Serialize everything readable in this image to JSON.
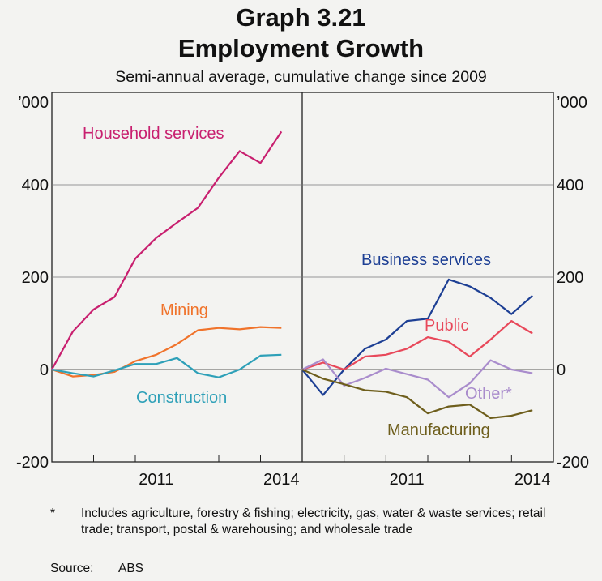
{
  "title": "Graph 3.21",
  "subtitle": "Employment Growth",
  "caption": "Semi-annual average, cumulative change since 2009",
  "footnote": {
    "marker": "*",
    "text": "Includes agriculture, forestry & fishing; electricity, gas, water & waste services; retail trade; transport, postal & warehousing; and wholesale trade"
  },
  "source": {
    "label": "Source:",
    "value": "ABS"
  },
  "chart_data": [
    {
      "type": "line",
      "panel": "left",
      "units_label": "’000",
      "ylim": [
        -200,
        600
      ],
      "yticks": [
        -200,
        0,
        200,
        400
      ],
      "xlim": [
        2009.0,
        2015.0
      ],
      "xticks": [
        2011,
        2014
      ],
      "x": [
        2009.0,
        2009.5,
        2010.0,
        2010.5,
        2011.0,
        2011.5,
        2012.0,
        2012.5,
        2013.0,
        2013.5,
        2014.0,
        2014.5
      ],
      "series": [
        {
          "name": "Household services",
          "color": "#c81f6f",
          "values": [
            0,
            82,
            130,
            157,
            240,
            285,
            318,
            350,
            415,
            473,
            447,
            515
          ]
        },
        {
          "name": "Mining",
          "color": "#f0732b",
          "values": [
            0,
            -15,
            -12,
            -5,
            18,
            32,
            55,
            85,
            90,
            87,
            92,
            90
          ]
        },
        {
          "name": "Construction",
          "color": "#2ea0b8",
          "values": [
            0,
            -8,
            -15,
            -2,
            12,
            12,
            25,
            -8,
            -17,
            0,
            30,
            32
          ]
        }
      ]
    },
    {
      "type": "line",
      "panel": "right",
      "units_label": "’000",
      "ylim": [
        -200,
        600
      ],
      "yticks": [
        -200,
        0,
        200,
        400
      ],
      "xlim": [
        2009.0,
        2015.0
      ],
      "xticks": [
        2011,
        2014
      ],
      "x": [
        2009.0,
        2009.5,
        2010.0,
        2010.5,
        2011.0,
        2011.5,
        2012.0,
        2012.5,
        2013.0,
        2013.5,
        2014.0,
        2014.5
      ],
      "series": [
        {
          "name": "Business services",
          "color": "#1d3f94",
          "values": [
            0,
            -55,
            0,
            45,
            65,
            105,
            110,
            195,
            180,
            155,
            120,
            160
          ]
        },
        {
          "name": "Public",
          "color": "#e8485a",
          "values": [
            0,
            15,
            0,
            28,
            32,
            45,
            70,
            60,
            28,
            65,
            105,
            78
          ]
        },
        {
          "name": "Other*",
          "color": "#a98ccc",
          "values": [
            0,
            22,
            -35,
            -18,
            2,
            -10,
            -22,
            -60,
            -30,
            20,
            0,
            -8
          ]
        },
        {
          "name": "Manufacturing",
          "color": "#6e5e1c",
          "values": [
            0,
            -20,
            -32,
            -45,
            -48,
            -60,
            -95,
            -80,
            -76,
            -105,
            -100,
            -88
          ]
        }
      ]
    }
  ],
  "series_labels": [
    {
      "text": "Household services",
      "color": "#c81f6f"
    },
    {
      "text": "Mining",
      "color": "#f0732b"
    },
    {
      "text": "Construction",
      "color": "#2ea0b8"
    },
    {
      "text": "Business services",
      "color": "#1d3f94"
    },
    {
      "text": "Public",
      "color": "#e8485a"
    },
    {
      "text": "Other*",
      "color": "#a98ccc"
    },
    {
      "text": "Manufacturing",
      "color": "#6e5e1c"
    }
  ]
}
